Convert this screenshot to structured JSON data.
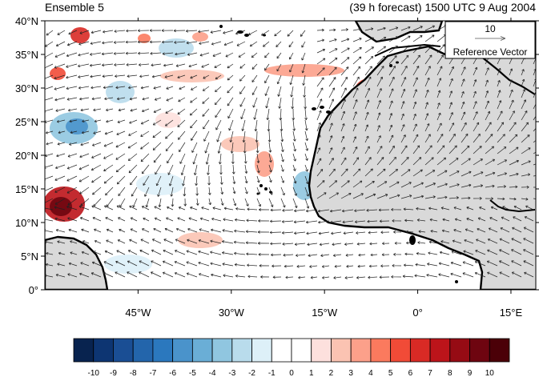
{
  "title_left": "Ensemble 5",
  "title_right": "(39 h forecast) 1500 UTC 9 Aug 2004",
  "map": {
    "lon_range": [
      -60,
      19
    ],
    "lat_range": [
      0,
      40
    ],
    "lat_ticks": [
      {
        "value": 40,
        "label": "40°N"
      },
      {
        "value": 35,
        "label": "35°N"
      },
      {
        "value": 30,
        "label": "30°N"
      },
      {
        "value": 25,
        "label": "25°N"
      },
      {
        "value": 20,
        "label": "20°N"
      },
      {
        "value": 15,
        "label": "15°N"
      },
      {
        "value": 10,
        "label": "10°N"
      },
      {
        "value": 5,
        "label": "5°N"
      },
      {
        "value": 0,
        "label": "0°"
      }
    ],
    "lon_ticks": [
      {
        "value": -45,
        "label": "45°W"
      },
      {
        "value": -30,
        "label": "30°W"
      },
      {
        "value": -15,
        "label": "15°W"
      },
      {
        "value": 0,
        "label": "0°"
      },
      {
        "value": 15,
        "label": "15°E"
      }
    ],
    "land_color": "#d9d9d9"
  },
  "reference_vector": {
    "magnitude": "10",
    "label": "Reference Vector"
  },
  "colorbar": {
    "colors": [
      "#08234f",
      "#0d3572",
      "#1a4e94",
      "#2365ab",
      "#2b78be",
      "#4a93cb",
      "#6aaed6",
      "#90c6e0",
      "#b9dcec",
      "#ddf0f8",
      "#ffffff",
      "#ffffff",
      "#fde0dd",
      "#fbc3b2",
      "#fca08a",
      "#fb7a5e",
      "#f14b37",
      "#d92a25",
      "#bc141a",
      "#960b14",
      "#6e0510",
      "#4b0008"
    ],
    "labels": [
      "-10",
      "-9",
      "-8",
      "-7",
      "-6",
      "-5",
      "-4",
      "-3",
      "-2",
      "-1",
      "0",
      "1",
      "2",
      "3",
      "4",
      "5",
      "6",
      "7",
      "8",
      "9",
      "10"
    ]
  }
}
